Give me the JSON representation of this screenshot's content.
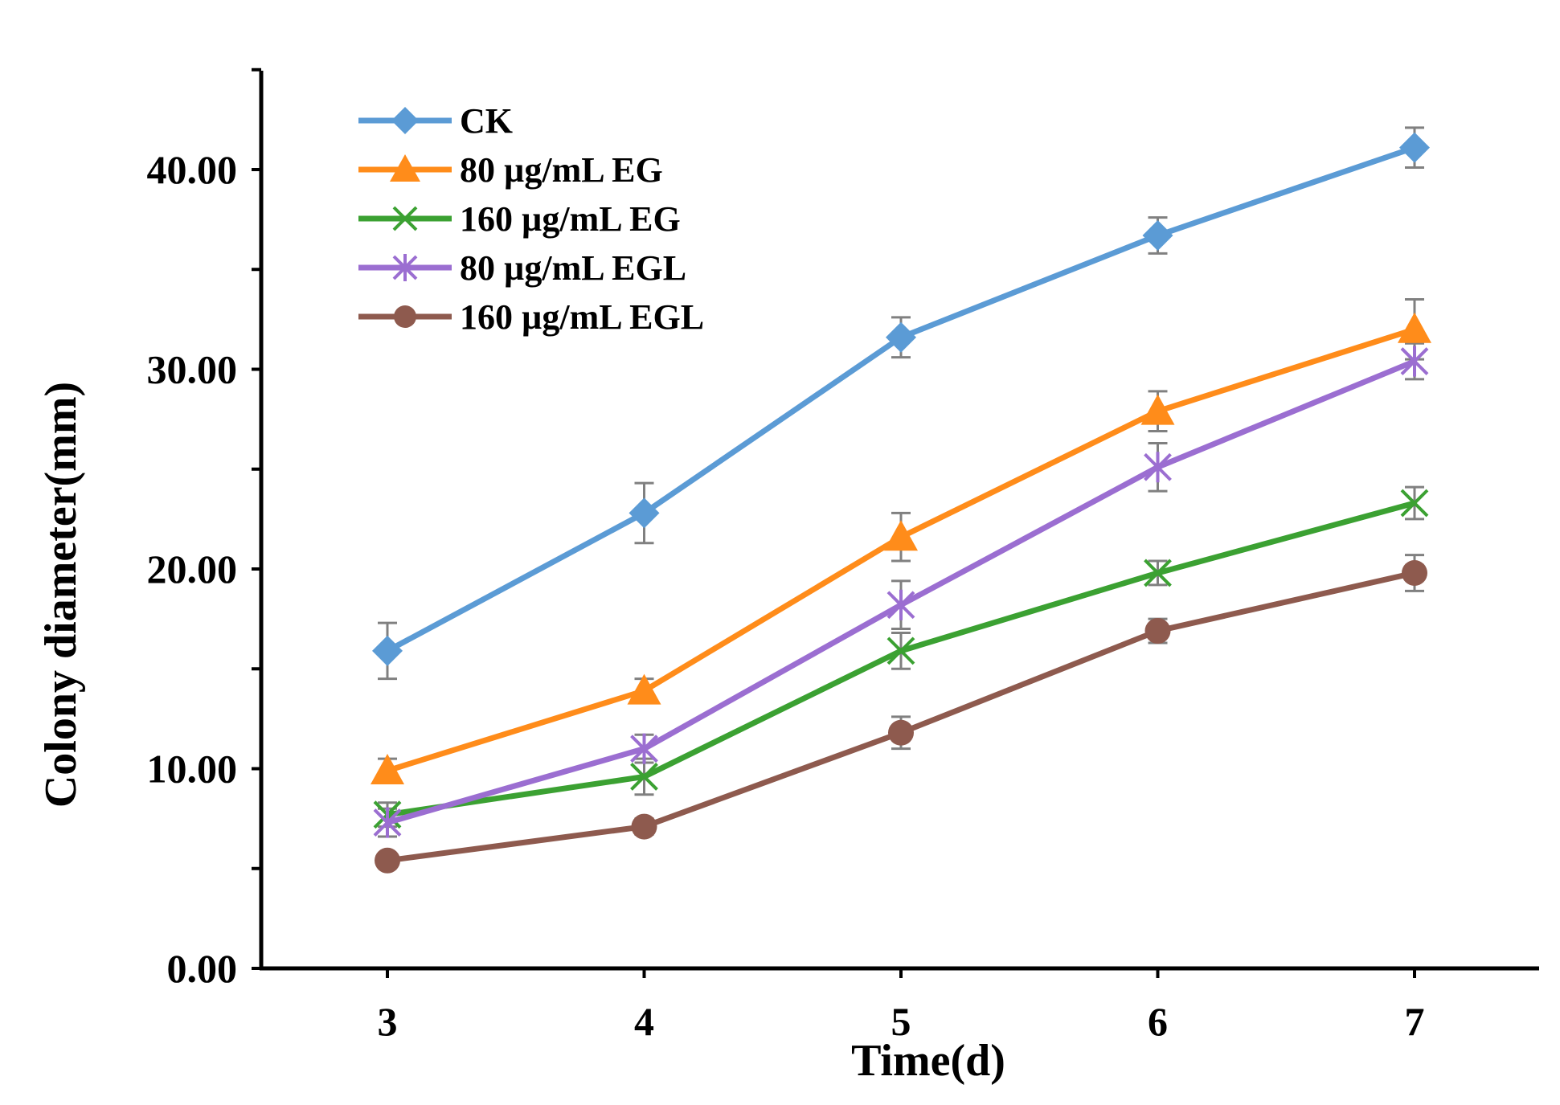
{
  "chart_data": {
    "type": "line",
    "title": "",
    "xlabel": "Time(d)",
    "ylabel": "Colony diameter(mm)",
    "x": [
      3,
      4,
      5,
      6,
      7
    ],
    "x_tick_labels": [
      "3",
      "4",
      "5",
      "6",
      "7"
    ],
    "y_tick_labels": [
      "0.00",
      "10.00",
      "20.00",
      "30.00",
      "40.00"
    ],
    "y_tick_values": [
      0,
      10,
      20,
      30,
      40
    ],
    "y_minor_ticks": [
      5,
      15,
      25,
      35,
      45
    ],
    "ylim": [
      0,
      45
    ],
    "grid": false,
    "legend_position": "top-left",
    "series": [
      {
        "name": "CK",
        "marker": "diamond",
        "color": "#5B9BD5",
        "values": [
          15.9,
          22.8,
          31.6,
          36.7,
          41.1
        ],
        "errors": [
          1.4,
          1.5,
          1.0,
          0.9,
          1.0
        ]
      },
      {
        "name": "80 µg/mL EG",
        "marker": "triangle",
        "color": "#FF8C1A",
        "values": [
          9.9,
          13.9,
          21.6,
          27.9,
          32.0
        ],
        "errors": [
          0.6,
          0.6,
          1.2,
          1.0,
          1.5
        ]
      },
      {
        "name": "160 µg/mL EG",
        "marker": "x",
        "color": "#3BA132",
        "values": [
          7.7,
          9.6,
          15.9,
          19.8,
          23.3
        ],
        "errors": [
          0.6,
          0.9,
          0.9,
          0.6,
          0.8
        ]
      },
      {
        "name": "80 µg/mL EGL",
        "marker": "star",
        "color": "#9B6ED1",
        "values": [
          7.3,
          11.0,
          18.2,
          25.1,
          30.4
        ],
        "errors": [
          0.7,
          0.7,
          1.2,
          1.2,
          0.9
        ]
      },
      {
        "name": "160 µg/mL EGL",
        "marker": "circle",
        "color": "#8E5A4E",
        "values": [
          5.4,
          7.1,
          11.8,
          16.9,
          19.8
        ],
        "errors": [
          0.3,
          0.4,
          0.8,
          0.6,
          0.9
        ]
      }
    ]
  }
}
